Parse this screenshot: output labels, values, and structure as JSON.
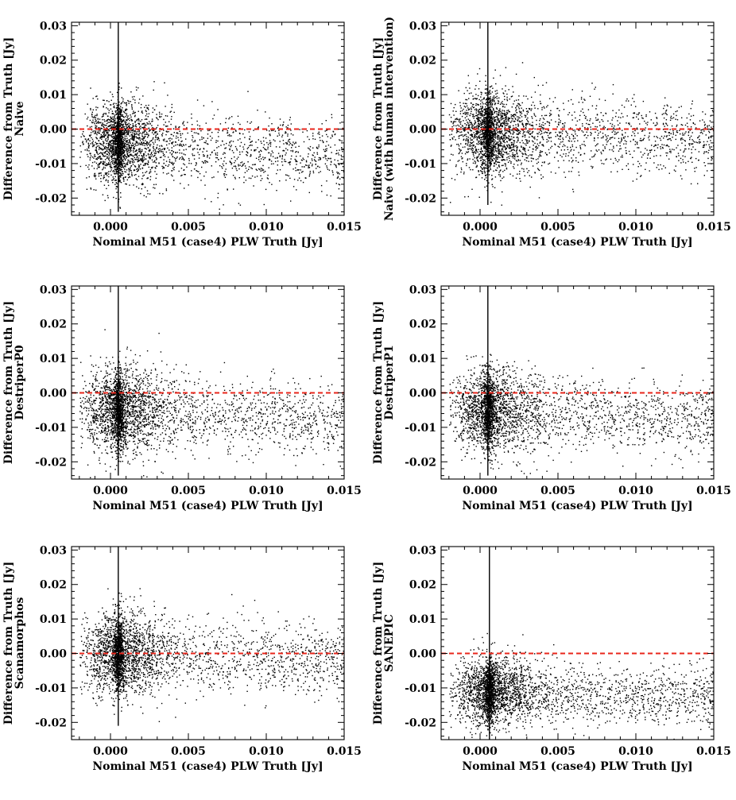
{
  "chart_data": [
    {
      "type": "scatter",
      "method": "Naive",
      "xlabel": "Nominal M51 (case4) PLW Truth [Jy]",
      "ylabel": "Difference from Truth [Jy]",
      "ylabel2": "Naive",
      "xlim": [
        -0.0025,
        0.015
      ],
      "ylim": [
        -0.025,
        0.031
      ],
      "xticks": [
        "0.000",
        "0.005",
        "0.010",
        "0.015"
      ],
      "yticks": [
        "-0.02",
        "-0.01",
        "0.00",
        "0.01",
        "0.02",
        "0.03"
      ],
      "reference_line_y": 0.0,
      "spike_x": 0.0005,
      "spike_range": [
        -0.024,
        0.031
      ],
      "cloud": {
        "center_x": 0.0005,
        "center_y": -0.004,
        "spread_x": 0.0035,
        "spread_y": 0.006,
        "tail_y": -0.008
      },
      "n_points": 3200
    },
    {
      "type": "scatter",
      "method": "Naive (with human intervention)",
      "xlabel": "Nominal M51 (case4) PLW Truth [Jy]",
      "ylabel": "Difference from Truth [Jy]",
      "ylabel2": "Naive (with human intervention)",
      "xlim": [
        -0.0025,
        0.015
      ],
      "ylim": [
        -0.025,
        0.031
      ],
      "xticks": [
        "0.000",
        "0.005",
        "0.010",
        "0.015"
      ],
      "yticks": [
        "-0.02",
        "-0.01",
        "0.00",
        "0.01",
        "0.02",
        "0.03"
      ],
      "reference_line_y": 0.0,
      "spike_x": 0.0005,
      "spike_range": [
        -0.022,
        0.031
      ],
      "cloud": {
        "center_x": 0.0005,
        "center_y": -0.001,
        "spread_x": 0.0035,
        "spread_y": 0.006,
        "tail_y": -0.003
      },
      "n_points": 3200
    },
    {
      "type": "scatter",
      "method": "DestriperP0",
      "xlabel": "Nominal M51 (case4) PLW Truth [Jy]",
      "ylabel": "Difference from Truth [Jy]",
      "ylabel2": "DestriperP0",
      "xlim": [
        -0.0025,
        0.015
      ],
      "ylim": [
        -0.025,
        0.031
      ],
      "xticks": [
        "0.000",
        "0.005",
        "0.010",
        "0.015"
      ],
      "yticks": [
        "-0.02",
        "-0.01",
        "0.00",
        "0.01",
        "0.02",
        "0.03"
      ],
      "reference_line_y": 0.0,
      "spike_x": 0.0005,
      "spike_range": [
        -0.024,
        0.031
      ],
      "cloud": {
        "center_x": 0.0005,
        "center_y": -0.005,
        "spread_x": 0.0035,
        "spread_y": 0.006,
        "tail_y": -0.008
      },
      "n_points": 3200
    },
    {
      "type": "scatter",
      "method": "DestriperP1",
      "xlabel": "Nominal M51 (case4) PLW Truth [Jy]",
      "ylabel": "Difference from Truth [Jy]",
      "ylabel2": "DestriperP1",
      "xlim": [
        -0.0025,
        0.015
      ],
      "ylim": [
        -0.025,
        0.031
      ],
      "xticks": [
        "0.000",
        "0.005",
        "0.010",
        "0.015"
      ],
      "yticks": [
        "-0.02",
        "-0.01",
        "0.00",
        "0.01",
        "0.02",
        "0.03"
      ],
      "reference_line_y": 0.0,
      "spike_x": 0.0005,
      "spike_range": [
        -0.024,
        0.031
      ],
      "cloud": {
        "center_x": 0.0005,
        "center_y": -0.005,
        "spread_x": 0.0035,
        "spread_y": 0.006,
        "tail_y": -0.008
      },
      "n_points": 3200
    },
    {
      "type": "scatter",
      "method": "Scanamorphos",
      "xlabel": "Nominal M51 (case4) PLW Truth [Jy]",
      "ylabel": "Difference from Truth [Jy]",
      "ylabel2": "Scanamorphos",
      "xlim": [
        -0.0025,
        0.015
      ],
      "ylim": [
        -0.025,
        0.031
      ],
      "xticks": [
        "0.000",
        "0.005",
        "0.010",
        "0.015"
      ],
      "yticks": [
        "-0.02",
        "-0.01",
        "0.00",
        "0.01",
        "0.02",
        "0.03"
      ],
      "reference_line_y": 0.0,
      "spike_x": 0.0005,
      "spike_range": [
        -0.021,
        0.031
      ],
      "cloud": {
        "center_x": 0.0005,
        "center_y": 0.0,
        "spread_x": 0.0035,
        "spread_y": 0.006,
        "tail_y": -0.002
      },
      "n_points": 3200
    },
    {
      "type": "scatter",
      "method": "SANEPIC",
      "xlabel": "Nominal M51 (case4) PLW Truth [Jy]",
      "ylabel": "Difference from Truth [Jy]",
      "ylabel2": "SANEPIC",
      "xlim": [
        -0.0025,
        0.015
      ],
      "ylim": [
        -0.025,
        0.031
      ],
      "xticks": [
        "0.000",
        "0.005",
        "0.010",
        "0.015"
      ],
      "yticks": [
        "-0.02",
        "-0.01",
        "0.00",
        "0.01",
        "0.02",
        "0.03"
      ],
      "reference_line_y": 0.0,
      "spike_x": 0.0006,
      "spike_range": [
        -0.025,
        0.031
      ],
      "cloud": {
        "center_x": 0.0006,
        "center_y": -0.011,
        "spread_x": 0.0035,
        "spread_y": 0.005,
        "tail_y": -0.013
      },
      "n_points": 3200
    }
  ],
  "colors": {
    "reference_line": "#e8261b",
    "points": "#000000",
    "axes": "#000000",
    "background": "#ffffff"
  }
}
